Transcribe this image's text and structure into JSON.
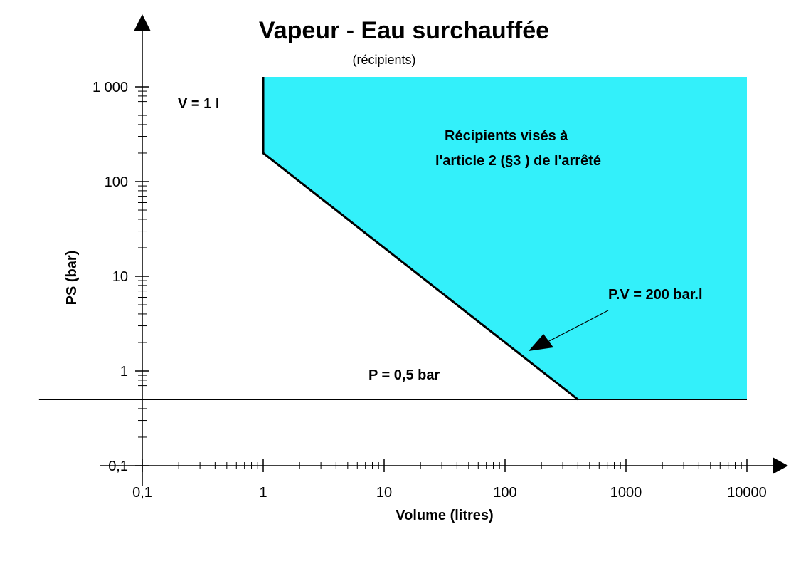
{
  "chart_data": {
    "type": "region",
    "title": "Vapeur - Eau surchauffée",
    "subtitle": "(récipients)",
    "xlabel": "Volume (litres)",
    "ylabel": "PS (bar)",
    "xlog": true,
    "ylog": true,
    "xlim": [
      0.1,
      10000
    ],
    "ylim": [
      0.1,
      1000
    ],
    "xticks": [
      {
        "value": 0.1,
        "label": "0,1"
      },
      1,
      10,
      100,
      1000,
      10000
    ],
    "yticks": [
      {
        "value": 0.1,
        "label": "0,1"
      },
      1,
      10,
      100,
      {
        "value": 1000,
        "label": "1 000"
      }
    ],
    "region": {
      "color": "#33f0fa",
      "x": [
        1,
        1,
        400,
        10000,
        10000
      ],
      "y": [
        1274,
        200,
        0.5,
        0.5,
        1274
      ]
    },
    "limit": {
      "x": [
        0.014,
        10000
      ],
      "y": [
        0.5,
        0.5
      ]
    },
    "annotations": [
      "V = 1 l",
      "Récipients visés à",
      "l'article 2 (§3 ) de l'arrêté",
      "P.V = 200 bar.l",
      "P = 0,5 bar"
    ]
  }
}
